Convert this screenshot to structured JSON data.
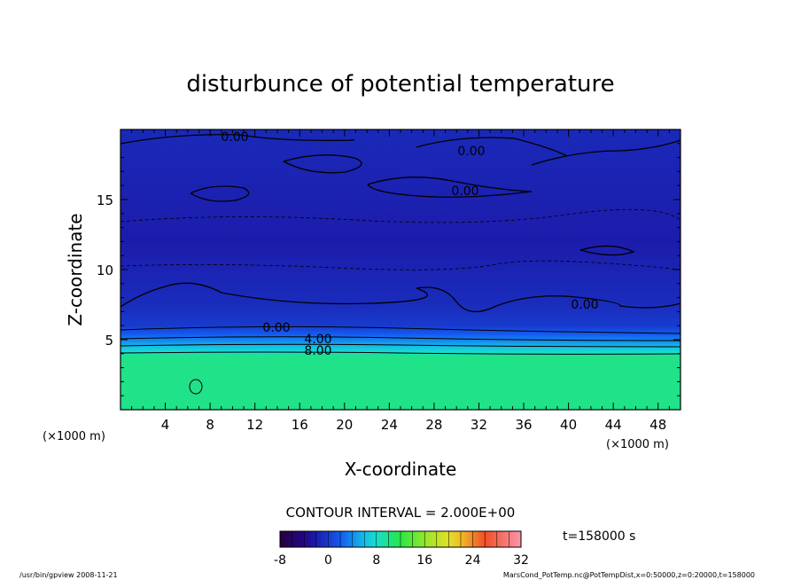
{
  "chart_data": {
    "type": "heatmap",
    "title": "disturbunce of potential temperature",
    "xlabel": "X-coordinate",
    "ylabel": "Z-coordinate",
    "x_unit": "(×1000 m)",
    "x_unit_right": "(×1000 m)",
    "xlim": [
      0,
      50
    ],
    "ylim": [
      0,
      20
    ],
    "x_ticks": [
      "4",
      "8",
      "12",
      "16",
      "20",
      "24",
      "28",
      "32",
      "36",
      "40",
      "44",
      "48"
    ],
    "y_ticks": [
      "5",
      "10",
      "15"
    ],
    "contour_labels": [
      "0.00",
      "0.00",
      "0.00",
      "0.00",
      "0.00",
      "4.00",
      "8.00"
    ],
    "contour_interval_text": "CONTOUR INTERVAL = 2.000E+00",
    "time_text": "t=158000 s",
    "colorbar": {
      "min": -8,
      "max": 32,
      "ticks": [
        "-8",
        "0",
        "8",
        "16",
        "24",
        "32"
      ]
    },
    "field_profile": [
      {
        "z": 0,
        "value": 10
      },
      {
        "z": 3.8,
        "value": 10
      },
      {
        "z": 4.1,
        "value": 8
      },
      {
        "z": 4.5,
        "value": 6
      },
      {
        "z": 4.9,
        "value": 4
      },
      {
        "z": 5.4,
        "value": 2
      },
      {
        "z": 6.0,
        "value": 0
      },
      {
        "z": 7.5,
        "value": -1
      },
      {
        "z": 12,
        "value": -2
      },
      {
        "z": 17,
        "value": -1.5
      },
      {
        "z": 20,
        "value": -1.2
      }
    ],
    "footer_left": "/usr/bin/gpview 2008-11-21",
    "footer_right": "MarsCond_PotTemp.nc@PotTempDist,x=0:50000,z=0:20000,t=158000"
  }
}
